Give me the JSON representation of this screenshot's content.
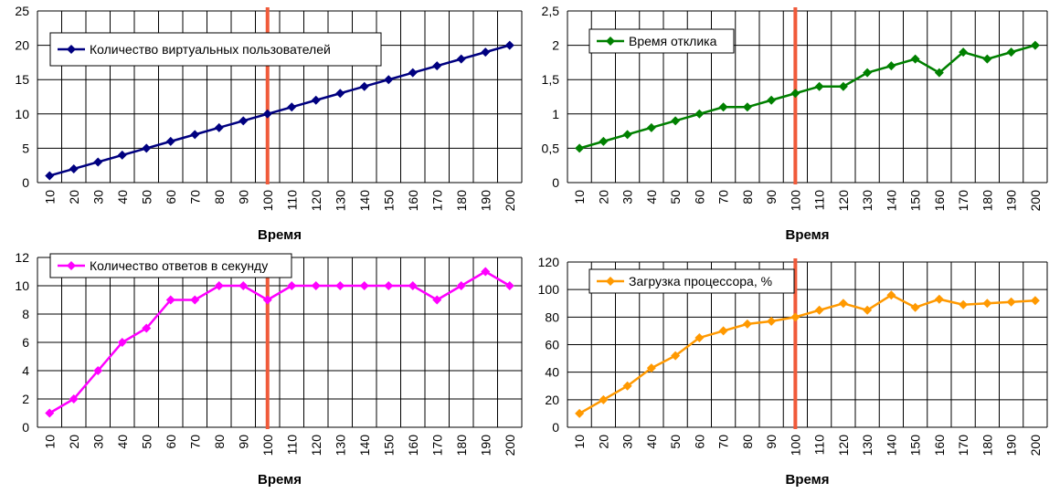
{
  "chart_data": [
    {
      "type": "line",
      "xlabel": "Время",
      "ylabel": "",
      "x": [
        10,
        20,
        30,
        40,
        50,
        60,
        70,
        80,
        90,
        100,
        110,
        120,
        130,
        140,
        150,
        160,
        170,
        180,
        190,
        200
      ],
      "ylim": [
        0,
        25
      ],
      "yticks": [
        "0",
        "5",
        "10",
        "15",
        "20",
        "25"
      ],
      "grid": true,
      "legend": "top-left",
      "marker_x": 100,
      "series": [
        {
          "name": "Количество виртуальных пользователей",
          "color": "#000080",
          "values": [
            1,
            2,
            3,
            4,
            5,
            6,
            7,
            8,
            9,
            10,
            11,
            12,
            13,
            14,
            15,
            16,
            17,
            18,
            19,
            20
          ]
        }
      ]
    },
    {
      "type": "line",
      "xlabel": "Время",
      "ylabel": "",
      "x": [
        10,
        20,
        30,
        40,
        50,
        60,
        70,
        80,
        90,
        100,
        110,
        120,
        130,
        140,
        150,
        160,
        170,
        180,
        190,
        200
      ],
      "ylim": [
        0,
        2.5
      ],
      "yticks": [
        "0",
        "0,5",
        "1",
        "1,5",
        "2",
        "2,5"
      ],
      "grid": true,
      "legend": "top-left",
      "marker_x": 100,
      "series": [
        {
          "name": "Время отклика",
          "color": "#008000",
          "values": [
            0.5,
            0.6,
            0.7,
            0.8,
            0.9,
            1.0,
            1.1,
            1.1,
            1.2,
            1.3,
            1.4,
            1.4,
            1.6,
            1.7,
            1.8,
            1.6,
            1.9,
            1.8,
            1.9,
            2.0
          ]
        }
      ]
    },
    {
      "type": "line",
      "xlabel": "Время",
      "ylabel": "",
      "x": [
        10,
        20,
        30,
        40,
        50,
        60,
        70,
        80,
        90,
        100,
        110,
        120,
        130,
        140,
        150,
        160,
        170,
        180,
        190,
        200
      ],
      "ylim": [
        0,
        12
      ],
      "yticks": [
        "0",
        "2",
        "4",
        "6",
        "8",
        "10",
        "12"
      ],
      "grid": true,
      "legend": "top-left",
      "marker_x": 100,
      "series": [
        {
          "name": "Количество ответов в секунду",
          "color": "#FF00FF",
          "values": [
            1,
            2,
            4,
            6,
            7,
            9,
            9,
            10,
            10,
            9,
            10,
            10,
            10,
            10,
            10,
            10,
            9,
            10,
            11,
            10
          ]
        }
      ]
    },
    {
      "type": "line",
      "xlabel": "Время",
      "ylabel": "",
      "x": [
        10,
        20,
        30,
        40,
        50,
        60,
        70,
        80,
        90,
        100,
        110,
        120,
        130,
        140,
        150,
        160,
        170,
        180,
        190,
        200
      ],
      "ylim": [
        0,
        120
      ],
      "yticks": [
        "0",
        "20",
        "40",
        "60",
        "80",
        "100",
        "120"
      ],
      "grid": true,
      "legend": "top-left",
      "marker_x": 100,
      "series": [
        {
          "name": "Загрузка процессора, %",
          "color": "#FF9900",
          "values": [
            10,
            20,
            30,
            43,
            52,
            65,
            70,
            75,
            77,
            80,
            85,
            90,
            85,
            96,
            87,
            93,
            89,
            90,
            91,
            92
          ]
        }
      ]
    }
  ]
}
